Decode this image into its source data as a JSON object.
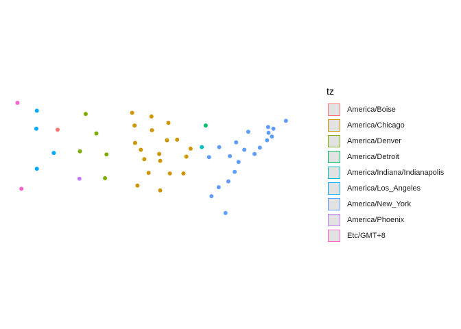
{
  "chart_data": {
    "type": "scatter",
    "title": "",
    "xlabel": "",
    "ylabel": "",
    "grid": false,
    "axes": false,
    "legend_placement": "right",
    "legend_title": "tz",
    "xlim": [
      -125,
      -66
    ],
    "ylim": [
      24,
      50
    ],
    "series": [
      {
        "name": "America/Boise",
        "color": "#F8766D",
        "points": [
          [
            -116.2,
            43.6
          ]
        ]
      },
      {
        "name": "America/Chicago",
        "color": "#CD9600",
        "points": [
          [
            -100.8,
            46.8
          ],
          [
            -96.8,
            46.1
          ],
          [
            -93.3,
            44.9
          ],
          [
            -100.3,
            44.4
          ],
          [
            -96.7,
            43.5
          ],
          [
            -93.6,
            41.6
          ],
          [
            -100.2,
            41.1
          ],
          [
            -91.5,
            41.7
          ],
          [
            -99.0,
            39.8
          ],
          [
            -95.2,
            39.0
          ],
          [
            -88.7,
            40.0
          ],
          [
            -98.3,
            38.0
          ],
          [
            -95.0,
            37.7
          ],
          [
            -89.6,
            38.5
          ],
          [
            -97.4,
            35.4
          ],
          [
            -93.0,
            35.3
          ],
          [
            -90.2,
            35.3
          ],
          [
            -99.7,
            33.0
          ],
          [
            -95.0,
            32.1
          ]
        ]
      },
      {
        "name": "America/Denver",
        "color": "#7CAE00",
        "points": [
          [
            -110.4,
            46.6
          ],
          [
            -108.2,
            42.9
          ],
          [
            -111.6,
            39.5
          ],
          [
            -106.1,
            38.9
          ],
          [
            -106.4,
            34.4
          ]
        ]
      },
      {
        "name": "America/Detroit",
        "color": "#00BE67",
        "points": [
          [
            -85.6,
            44.4
          ]
        ]
      },
      {
        "name": "America/Indiana/Indianapolis",
        "color": "#00BFC4",
        "points": [
          [
            -86.4,
            40.3
          ]
        ]
      },
      {
        "name": "America/Los_Angeles",
        "color": "#00A9FF",
        "points": [
          [
            -120.5,
            47.2
          ],
          [
            -120.6,
            43.8
          ],
          [
            -117.0,
            39.2
          ],
          [
            -120.5,
            36.2
          ]
        ]
      },
      {
        "name": "America/New_York",
        "color": "#619CFF",
        "points": [
          [
            -69.0,
            45.3
          ],
          [
            -72.7,
            44.1
          ],
          [
            -71.6,
            43.8
          ],
          [
            -76.8,
            43.2
          ],
          [
            -72.6,
            43.0
          ],
          [
            -71.9,
            42.3
          ],
          [
            -72.9,
            41.6
          ],
          [
            -79.3,
            41.2
          ],
          [
            -74.4,
            40.2
          ],
          [
            -75.5,
            39.0
          ],
          [
            -77.6,
            39.8
          ],
          [
            -82.8,
            40.3
          ],
          [
            -84.9,
            38.4
          ],
          [
            -80.6,
            38.6
          ],
          [
            -78.8,
            37.5
          ],
          [
            -79.6,
            35.6
          ],
          [
            -80.9,
            33.8
          ],
          [
            -82.9,
            32.7
          ],
          [
            -84.4,
            31.0
          ],
          [
            -81.5,
            27.8
          ]
        ]
      },
      {
        "name": "America/Phoenix",
        "color": "#C77CFF",
        "points": [
          [
            -111.7,
            34.3
          ]
        ]
      },
      {
        "name": "Etc/GMT+8",
        "color": "#FF61CC",
        "points": [
          [
            -124.5,
            48.7
          ],
          [
            -123.7,
            32.4
          ]
        ]
      }
    ]
  }
}
